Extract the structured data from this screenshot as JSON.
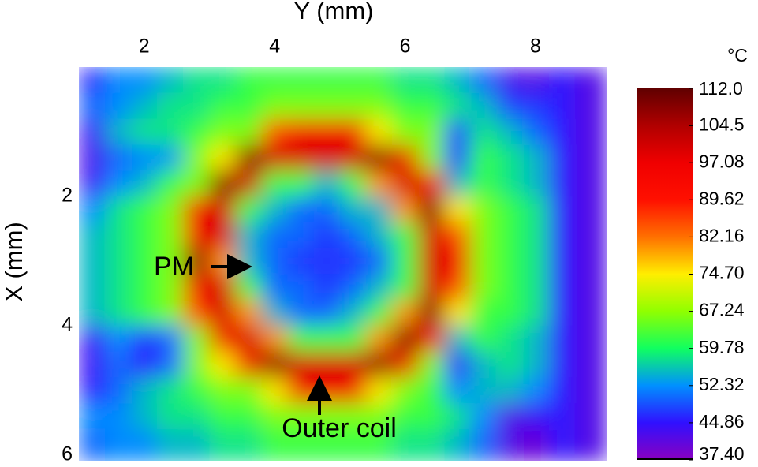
{
  "chart_data": {
    "type": "heatmap",
    "xlabel": "Y (mm)",
    "ylabel": "X (mm)",
    "colorbar_label": "°C",
    "xlim": [
      1.0,
      9.1
    ],
    "ylim": [
      0,
      6.1
    ],
    "xticks": [
      2,
      4,
      6,
      8
    ],
    "yticks": [
      2,
      4,
      6
    ],
    "x_axis_position": "top",
    "y_inverted": true,
    "x": [
      1.2,
      1.6,
      2.0,
      2.4,
      2.8,
      3.2,
      3.6,
      4.0,
      4.4,
      4.8,
      5.2,
      5.6,
      6.0,
      6.4,
      6.8,
      7.2,
      7.6,
      8.0,
      8.4,
      8.8
    ],
    "y": [
      0.2,
      0.6,
      1.0,
      1.4,
      1.8,
      2.2,
      2.6,
      3.0,
      3.4,
      3.8,
      4.2,
      4.6,
      5.0,
      5.4,
      5.8
    ],
    "values": [
      [
        46,
        52,
        52,
        55,
        58,
        58,
        62,
        62,
        62,
        62,
        62,
        62,
        58,
        58,
        55,
        50,
        43,
        42,
        45,
        42
      ],
      [
        50,
        52,
        55,
        58,
        58,
        62,
        62,
        66,
        66,
        66,
        66,
        66,
        62,
        62,
        58,
        55,
        48,
        47,
        45,
        42
      ],
      [
        44,
        55,
        58,
        58,
        62,
        66,
        66,
        85,
        95,
        95,
        95,
        75,
        66,
        66,
        48,
        58,
        55,
        50,
        45,
        42
      ],
      [
        43,
        50,
        52,
        53,
        66,
        75,
        108,
        100,
        100,
        100,
        100,
        108,
        95,
        66,
        47,
        62,
        58,
        55,
        45,
        42
      ],
      [
        44,
        52,
        55,
        62,
        66,
        108,
        100,
        62,
        62,
        55,
        62,
        80,
        100,
        95,
        55,
        62,
        58,
        55,
        45,
        42
      ],
      [
        52,
        58,
        62,
        66,
        95,
        100,
        62,
        55,
        50,
        50,
        55,
        55,
        80,
        108,
        75,
        66,
        62,
        58,
        45,
        42
      ],
      [
        55,
        58,
        62,
        66,
        95,
        100,
        55,
        50,
        50,
        47,
        50,
        55,
        62,
        100,
        85,
        66,
        62,
        58,
        45,
        42
      ],
      [
        55,
        58,
        62,
        66,
        108,
        80,
        55,
        50,
        47,
        47,
        47,
        50,
        62,
        100,
        95,
        66,
        62,
        58,
        45,
        42
      ],
      [
        55,
        58,
        62,
        66,
        95,
        100,
        62,
        50,
        50,
        47,
        50,
        55,
        62,
        100,
        85,
        66,
        62,
        58,
        45,
        42
      ],
      [
        55,
        58,
        62,
        66,
        85,
        100,
        80,
        55,
        50,
        50,
        55,
        62,
        80,
        108,
        75,
        62,
        62,
        58,
        45,
        42
      ],
      [
        44,
        52,
        47,
        50,
        66,
        95,
        100,
        80,
        62,
        62,
        62,
        80,
        108,
        95,
        55,
        62,
        58,
        55,
        45,
        42
      ],
      [
        44,
        50,
        45,
        50,
        66,
        75,
        95,
        108,
        100,
        100,
        100,
        108,
        95,
        66,
        45,
        55,
        58,
        55,
        45,
        42
      ],
      [
        45,
        50,
        55,
        58,
        62,
        66,
        66,
        75,
        95,
        95,
        95,
        75,
        66,
        62,
        52,
        55,
        55,
        52,
        45,
        42
      ],
      [
        52,
        52,
        55,
        58,
        58,
        62,
        62,
        66,
        66,
        66,
        66,
        66,
        62,
        62,
        58,
        52,
        42,
        44,
        45,
        42
      ],
      [
        50,
        52,
        52,
        55,
        55,
        58,
        58,
        62,
        62,
        62,
        62,
        62,
        58,
        58,
        55,
        50,
        42,
        40,
        45,
        42
      ]
    ],
    "vlim": [
      37.4,
      112.0
    ],
    "colormap": [
      "#8a00c0",
      "#3010ff",
      "#0090ff",
      "#10ff60",
      "#90ff00",
      "#ffee00",
      "#ff7000",
      "#ff1000",
      "#f00000",
      "#b00000",
      "#600000"
    ],
    "colorbar_ticks": [
      {
        "value": 112.0,
        "label": "112.0"
      },
      104.5,
      97.08,
      89.62,
      82.16,
      {
        "value": 74.7,
        "label": "74.70"
      },
      67.24,
      59.78,
      52.32,
      44.86,
      {
        "value": 37.4,
        "label": "37.40"
      }
    ],
    "annotations": [
      {
        "text": "PM"
      },
      {
        "text": "Outer coil"
      }
    ]
  }
}
